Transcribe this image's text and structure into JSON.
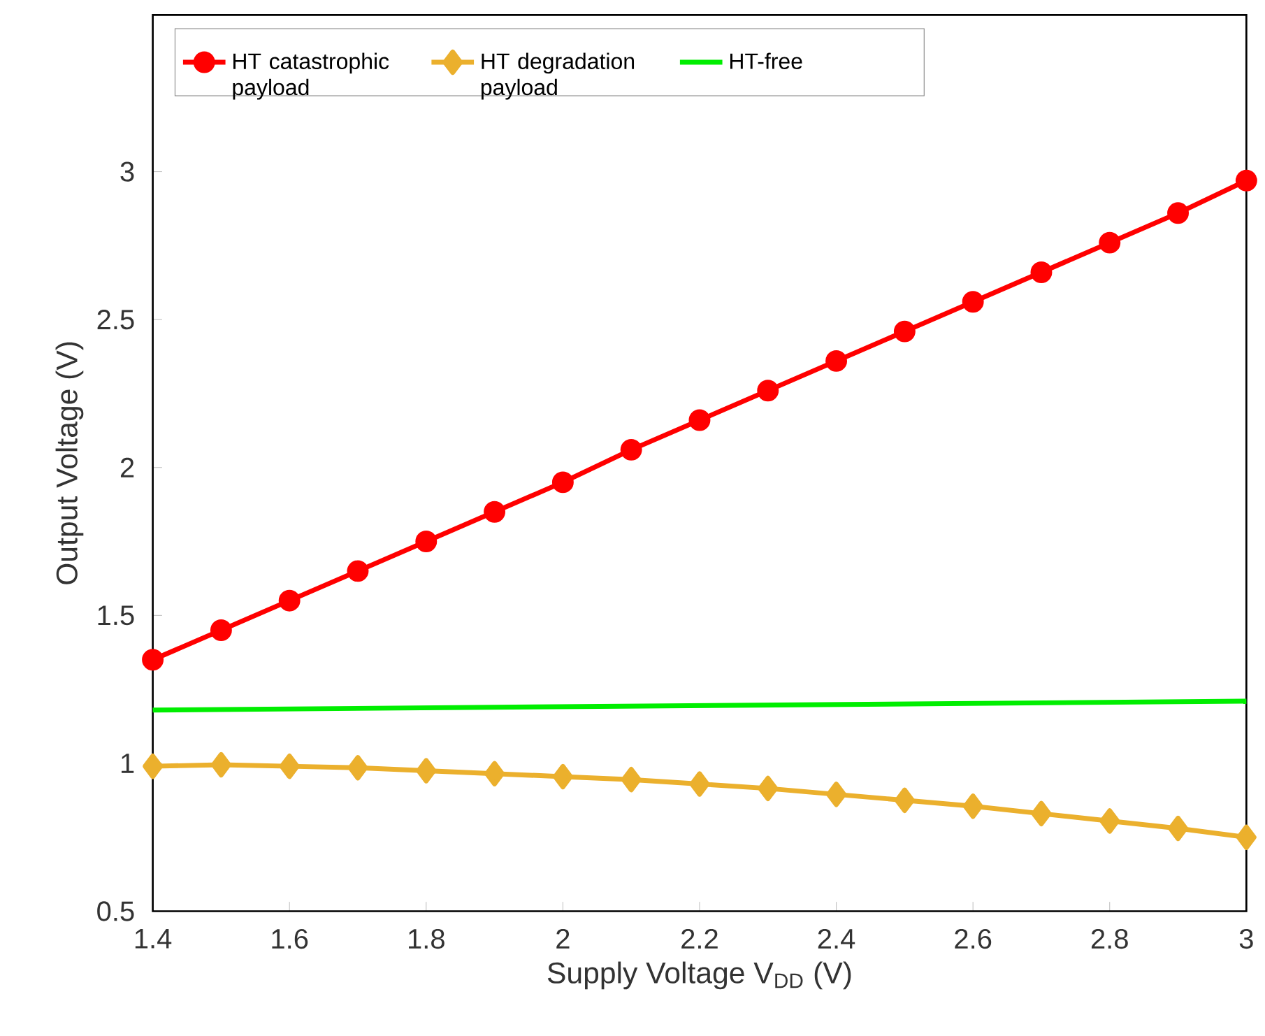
{
  "chart_data": {
    "type": "line",
    "xlabel": "Supply Voltage V$_{DD}$ (V)",
    "ylabel": "Output Voltage (V)",
    "x": [
      1.4,
      1.5,
      1.6,
      1.7,
      1.8,
      1.9,
      2.0,
      2.1,
      2.2,
      2.3,
      2.4,
      2.5,
      2.6,
      2.7,
      2.8,
      2.9,
      3.0
    ],
    "series": [
      {
        "name": "HT catastrophic payload",
        "color": "#ff0000",
        "marker": "circle",
        "values": [
          1.35,
          1.45,
          1.55,
          1.65,
          1.75,
          1.85,
          1.95,
          2.06,
          2.16,
          2.26,
          2.36,
          2.46,
          2.56,
          2.66,
          2.76,
          2.86,
          2.97
        ]
      },
      {
        "name": "HT degradation payload",
        "color": "#ebb02d",
        "marker": "diamond",
        "values": [
          0.99,
          0.995,
          0.99,
          0.985,
          0.975,
          0.965,
          0.955,
          0.945,
          0.93,
          0.915,
          0.895,
          0.875,
          0.855,
          0.83,
          0.805,
          0.78,
          0.75
        ]
      },
      {
        "name": "HT-free",
        "color": "#00ee00",
        "marker": "none",
        "x": [
          1.4,
          3.0
        ],
        "values": [
          1.18,
          1.21
        ]
      }
    ],
    "xlim": [
      1.4,
      3.0
    ],
    "xticks": [
      1.4,
      1.6,
      1.8,
      2,
      2.2,
      2.4,
      2.6,
      2.8,
      3
    ],
    "ylim": [
      0.5,
      3.53
    ],
    "yticks": [
      0.5,
      1,
      1.5,
      2,
      2.5,
      3
    ],
    "grid": false,
    "legend": "top left",
    "line_style": "solid"
  }
}
